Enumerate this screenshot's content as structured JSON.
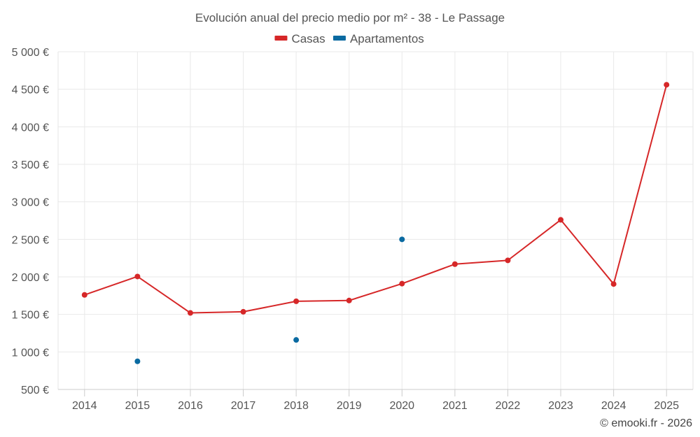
{
  "chart_data": {
    "type": "line",
    "title": "Evolución anual del precio medio por m² - 38 - Le Passage",
    "x": [
      "2014",
      "2015",
      "2016",
      "2017",
      "2018",
      "2019",
      "2020",
      "2021",
      "2022",
      "2023",
      "2024",
      "2025"
    ],
    "y_ticks": [
      "500 €",
      "1 000 €",
      "1 500 €",
      "2 000 €",
      "2 500 €",
      "3 000 €",
      "3 500 €",
      "4 000 €",
      "4 500 €",
      "5 000 €"
    ],
    "ylim": [
      500,
      5000
    ],
    "grid": true,
    "legend_position": "top-center",
    "series": [
      {
        "name": "Casas",
        "color": "#d62728",
        "style": "line",
        "values": [
          1760,
          2005,
          1520,
          1535,
          1675,
          1685,
          1910,
          2170,
          2220,
          2760,
          1905,
          4560
        ]
      },
      {
        "name": "Apartamentos",
        "color": "#0a6aa1",
        "style": "points",
        "values": [
          null,
          875,
          null,
          null,
          1160,
          null,
          2500,
          null,
          null,
          null,
          null,
          null
        ]
      }
    ],
    "credit": "© emooki.fr - 2026"
  }
}
